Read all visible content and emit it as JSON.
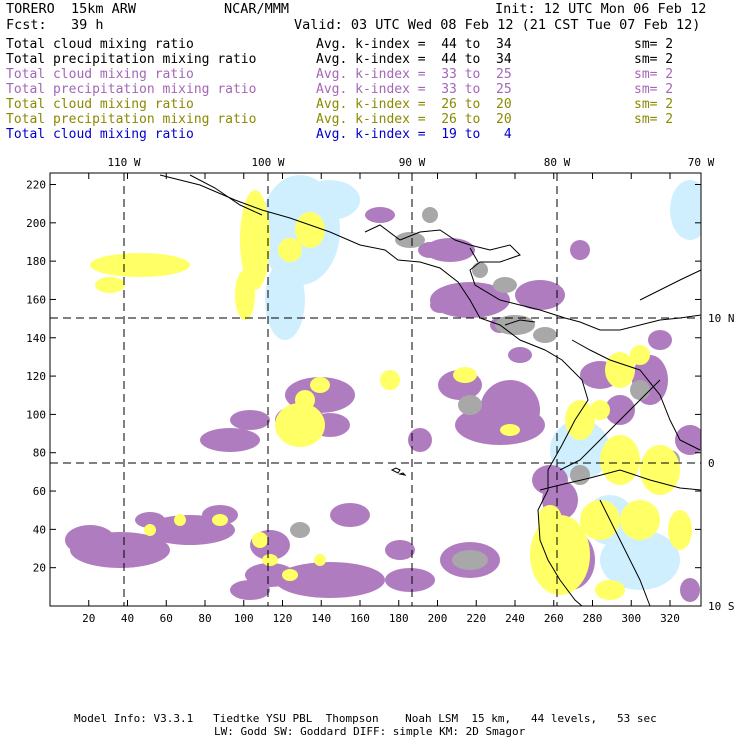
{
  "header": {
    "model": "TORERO  15km ARW",
    "institution": "NCAR/MMM",
    "init": "Init: 12 UTC Mon 06 Feb 12",
    "forecast": "Fcst:   39 h",
    "valid": "Valid: 03 UTC Wed 08 Feb 12 (21 CST Tue 07 Feb 12)"
  },
  "legend": [
    {
      "field": "Total cloud mixing ratio",
      "index": "Avg. k-index =  44 to  34",
      "smooth": "sm= 2",
      "color": "#000000"
    },
    {
      "field": "Total precipitation mixing ratio",
      "index": "Avg. k-index =  44 to  34",
      "smooth": "sm= 2",
      "color": "#000000"
    },
    {
      "field": "Total cloud mixing ratio",
      "index": "Avg. k-index =  33 to  25",
      "smooth": "sm= 2",
      "color": "#a467b8"
    },
    {
      "field": "Total precipitation mixing ratio",
      "index": "Avg. k-index =  33 to  25",
      "smooth": "sm= 2",
      "color": "#a467b8"
    },
    {
      "field": "Total cloud mixing ratio",
      "index": "Avg. k-index =  26 to  20",
      "smooth": "sm= 2",
      "color": "#8a8a00"
    },
    {
      "field": "Total precipitation mixing ratio",
      "index": "Avg. k-index =  26 to  20",
      "smooth": "sm= 2",
      "color": "#8a8a00"
    },
    {
      "field": "Total cloud mixing ratio",
      "index": "Avg. k-index =  19 to   4",
      "smooth": "",
      "color": "#0000cc"
    }
  ],
  "axes": {
    "lon_labels": [
      "110 W",
      "100 W",
      "90 W",
      "80 W",
      "70 W"
    ],
    "lat_labels": [
      "10 N",
      "0",
      "10 S"
    ],
    "x_ticks": [
      "20",
      "40",
      "60",
      "80",
      "100",
      "120",
      "140",
      "160",
      "180",
      "200",
      "220",
      "240",
      "260",
      "280",
      "300",
      "320"
    ],
    "y_ticks": [
      "20",
      "40",
      "60",
      "80",
      "100",
      "120",
      "140",
      "160",
      "180",
      "200",
      "220"
    ],
    "x_range": [
      0,
      336
    ],
    "y_range": [
      0,
      226
    ]
  },
  "footer": {
    "line1": "Model Info: V3.3.1   Tiedtke YSU PBL  Thompson    Noah LSM  15 km,   44 levels,   53 sec",
    "line2": "LW: Godd SW: Goddard DIFF: simple KM: 2D Smagor"
  },
  "colors": {
    "magenta_cloud": "#b07cc0",
    "yellow_precip": "#ffff66",
    "gray_cloud": "#a8a8a8",
    "cyan_cloud": "#cfefff",
    "coast": "#000000"
  }
}
